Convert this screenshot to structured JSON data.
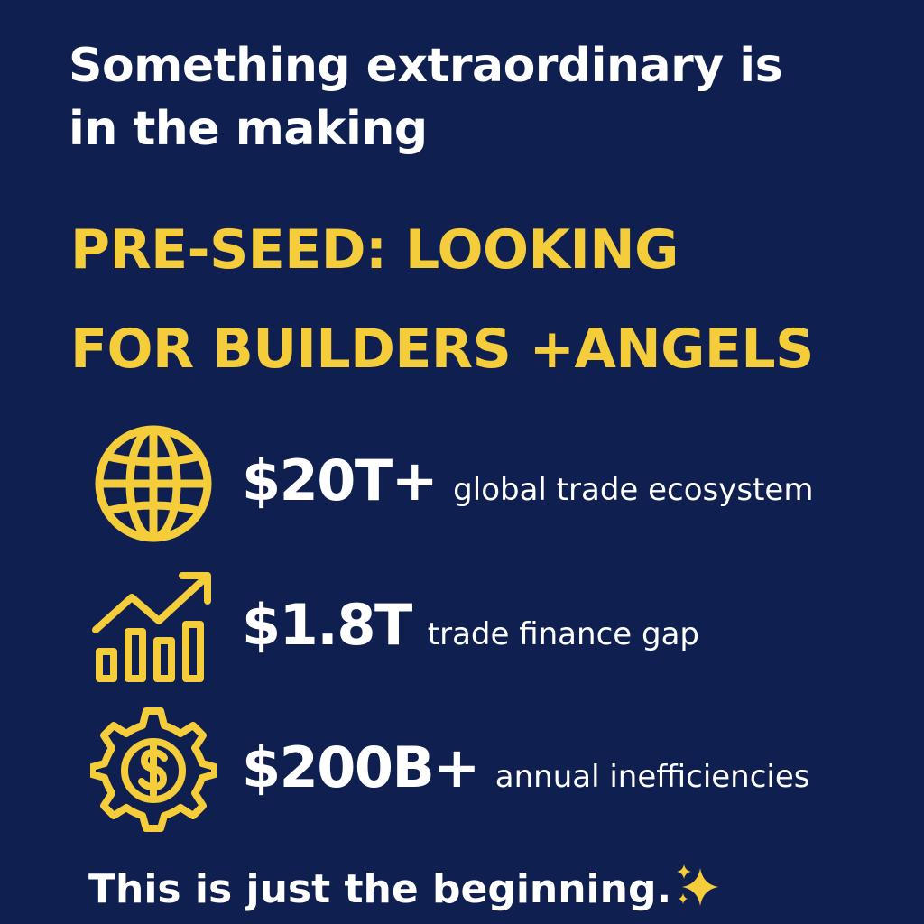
{
  "headline": {
    "line1": "Something extraordinary is",
    "line2": "in the making"
  },
  "subhead": {
    "line1": "PRE-SEED: LOOKING",
    "line2": "FOR BUILDERS +ANGELS"
  },
  "stats": [
    {
      "icon": "globe-icon",
      "value": "$20T+",
      "desc": "global trade ecosystem"
    },
    {
      "icon": "growth-chart-icon",
      "value": "$1.8T",
      "desc": "trade finance gap"
    },
    {
      "icon": "dollar-gear-icon",
      "value": "$200B+",
      "desc": "annual inefficiencies"
    }
  ],
  "footer": {
    "text": "This is just the beginning.",
    "icon": "sparkles-icon"
  },
  "colors": {
    "background": "#0f1f4f",
    "accent": "#f5cc3a",
    "text": "#ffffff"
  }
}
